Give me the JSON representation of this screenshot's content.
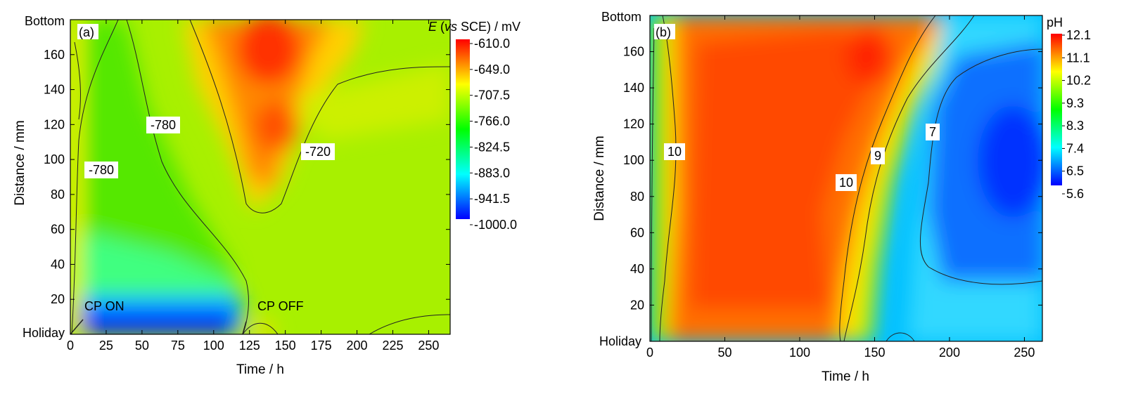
{
  "chart_data": [
    {
      "type": "heatmap",
      "panel_label": "(a)",
      "xlabel": "Time / h",
      "ylabel": "Distance / mm",
      "xlim": [
        0,
        265
      ],
      "ylim": [
        0,
        180
      ],
      "x_ticks": [
        "0",
        "25",
        "50",
        "75",
        "100",
        "125",
        "150",
        "175",
        "200",
        "225",
        "250"
      ],
      "y_ticks": [
        "20",
        "40",
        "60",
        "80",
        "100",
        "120",
        "140",
        "160"
      ],
      "y_end_labels": {
        "bottom": "Holiday",
        "top": "Bottom"
      },
      "colorbar": {
        "title_italic": "E",
        "title_paren_italic": "vs",
        "title_rest": "SCE) / mV",
        "ticks": [
          "-610.0",
          "-649.0",
          "-707.5",
          "-766.0",
          "-824.5",
          "-883.0",
          "-941.5",
          "-1000.0"
        ],
        "range": [
          -1000,
          -610
        ],
        "colors": [
          "#0000ff",
          "#00ffff",
          "#00ff00",
          "#ffff00",
          "#ff0000"
        ]
      },
      "contour_labels": [
        "-780",
        "-780",
        "-720"
      ],
      "annotations": [
        "CP ON",
        "CP OFF"
      ]
    },
    {
      "type": "heatmap",
      "panel_label": "(b)",
      "xlabel": "Time / h",
      "ylabel": "Distance / mm",
      "xlim": [
        0,
        262
      ],
      "ylim": [
        0,
        180
      ],
      "x_ticks": [
        "0",
        "50",
        "100",
        "150",
        "200",
        "250"
      ],
      "y_ticks": [
        "20",
        "40",
        "60",
        "80",
        "100",
        "120",
        "140",
        "160"
      ],
      "y_end_labels": {
        "bottom": "Holiday",
        "top": "Bottom"
      },
      "colorbar": {
        "title": "pH",
        "ticks": [
          "12.1",
          "11.1",
          "10.2",
          "9.3",
          "8.3",
          "7.4",
          "6.5",
          "5.6"
        ],
        "range": [
          5.6,
          12.1
        ],
        "colors": [
          "#0000ff",
          "#00ffff",
          "#00ff00",
          "#ffff00",
          "#ff0000"
        ]
      },
      "contour_labels": [
        "10",
        "10",
        "9",
        "7"
      ]
    }
  ]
}
